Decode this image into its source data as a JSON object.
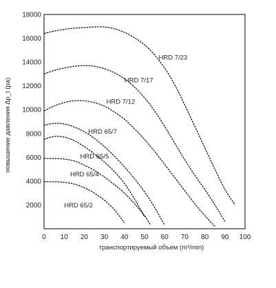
{
  "chart_data": {
    "type": "line",
    "xlabel": "транспортируемый объем (m³/min)",
    "ylabel": "повышение давления Δp_t (pa)",
    "xlim": [
      0,
      100
    ],
    "ylim": [
      0,
      18000
    ],
    "x_ticks": [
      "0",
      "10",
      "20",
      "30",
      "40",
      "50",
      "60",
      "70",
      "80",
      "90",
      "100"
    ],
    "y_ticks": [
      "2000",
      "4000",
      "6000",
      "8000",
      "10000",
      "12000",
      "14000",
      "16000",
      "18000"
    ],
    "grid": false,
    "series": [
      {
        "name": "HRD 7/23",
        "x": [
          0,
          5,
          10,
          15,
          20,
          25,
          30,
          35,
          40,
          45,
          50,
          55,
          60,
          65,
          70,
          75,
          80,
          85,
          90,
          95
        ],
        "y": [
          16400,
          16600,
          16750,
          16850,
          16900,
          16950,
          16950,
          16800,
          16500,
          16050,
          15450,
          14600,
          13500,
          12100,
          10400,
          8600,
          6800,
          5000,
          3300,
          2000
        ]
      },
      {
        "name": "HRD 7/17",
        "x": [
          0,
          5,
          10,
          15,
          20,
          25,
          30,
          35,
          40,
          45,
          50,
          55,
          60,
          65,
          70,
          75,
          80,
          85,
          90
        ],
        "y": [
          13000,
          13300,
          13500,
          13650,
          13700,
          13650,
          13450,
          13100,
          12600,
          11900,
          11000,
          9900,
          8600,
          7200,
          5800,
          4500,
          3300,
          2000,
          600
        ]
      },
      {
        "name": "HRD 7/12",
        "x": [
          0,
          5,
          10,
          15,
          20,
          25,
          30,
          35,
          40,
          45,
          50,
          55,
          60,
          65,
          70,
          75,
          80,
          85
        ],
        "y": [
          9900,
          10300,
          10600,
          10750,
          10750,
          10600,
          10300,
          9800,
          9200,
          8400,
          7500,
          6500,
          5400,
          4300,
          3200,
          2100,
          1100,
          200
        ]
      },
      {
        "name": "HRD 65/7",
        "x": [
          0,
          5,
          10,
          15,
          20,
          25,
          30,
          35,
          40,
          45,
          50,
          55,
          60
        ],
        "y": [
          8700,
          8850,
          8800,
          8550,
          8150,
          7600,
          6900,
          6100,
          5200,
          4200,
          3100,
          1800,
          300
        ]
      },
      {
        "name": "HRD 65/5",
        "x": [
          0,
          5,
          10,
          15,
          20,
          25,
          30,
          35,
          40,
          45,
          50
        ],
        "y": [
          7500,
          7750,
          7700,
          7400,
          6900,
          6300,
          5600,
          4800,
          3800,
          2500,
          1000
        ]
      },
      {
        "name": "HRD 65/4",
        "x": [
          0,
          5,
          10,
          15,
          20,
          25,
          30,
          35,
          40,
          45,
          50,
          53
        ],
        "y": [
          5900,
          5900,
          5850,
          5700,
          5350,
          4900,
          4350,
          3700,
          3000,
          2100,
          1100,
          300
        ]
      },
      {
        "name": "HRD 65/2",
        "x": [
          0,
          5,
          10,
          15,
          20,
          25,
          30,
          35,
          40
        ],
        "y": [
          3950,
          3950,
          3900,
          3750,
          3450,
          3000,
          2400,
          1600,
          500
        ]
      }
    ],
    "series_labels": [
      {
        "text": "HRD 7/23",
        "x": 57,
        "y": 14200
      },
      {
        "text": "HRD 7/17",
        "x": 40,
        "y": 12300
      },
      {
        "text": "HRD 7/12",
        "x": 31,
        "y": 10500
      },
      {
        "text": "HRD 65/7",
        "x": 22,
        "y": 8000
      },
      {
        "text": "HRD 65/5",
        "x": 18,
        "y": 5900
      },
      {
        "text": "HRD 65/4",
        "x": 13,
        "y": 4400
      },
      {
        "text": "HRD 65/2",
        "x": 10,
        "y": 1800
      }
    ]
  }
}
